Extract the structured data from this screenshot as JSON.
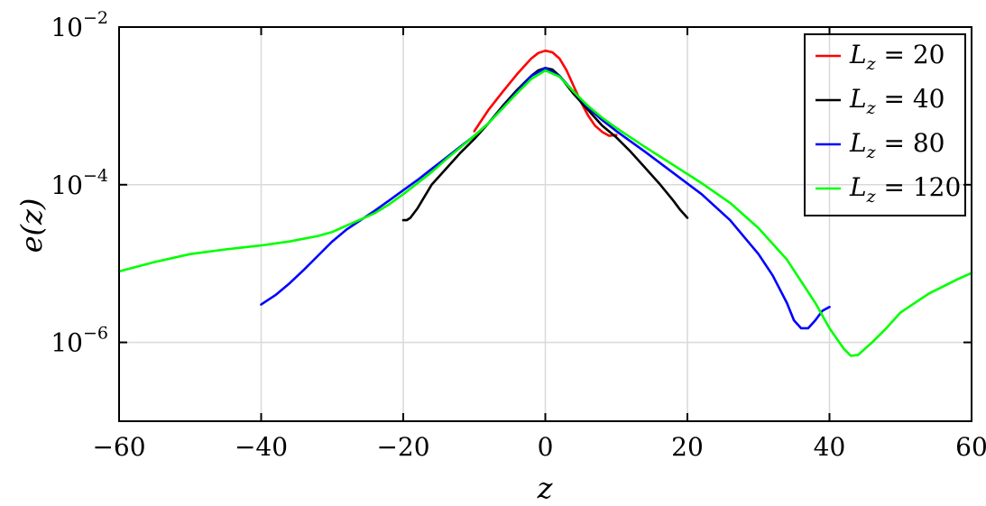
{
  "chart_data": {
    "type": "line",
    "xlabel": "z",
    "ylabel": "e(z)",
    "xlim": [
      -60,
      60
    ],
    "ylim_log10": [
      -7,
      -2
    ],
    "yscale": "log",
    "grid": true,
    "legend_placement": "top-right",
    "x_ticks": [
      {
        "value": -60,
        "label": "−60"
      },
      {
        "value": -40,
        "label": "−40"
      },
      {
        "value": -20,
        "label": "−20"
      },
      {
        "value": 0,
        "label": "0"
      },
      {
        "value": 20,
        "label": "20"
      },
      {
        "value": 40,
        "label": "40"
      },
      {
        "value": 60,
        "label": "60"
      }
    ],
    "y_ticks": [
      {
        "exp": -2,
        "base": "10",
        "sup": "−2"
      },
      {
        "exp": -4,
        "base": "10",
        "sup": "−4"
      },
      {
        "exp": -6,
        "base": "10",
        "sup": "−6"
      }
    ],
    "series": [
      {
        "name": "L_z = 20",
        "legend": {
          "L": "L",
          "sub": "z",
          "rest": " = 20"
        },
        "color": "#ff0000",
        "points": [
          [
            -10,
            -3.32
          ],
          [
            -8,
            -3.05
          ],
          [
            -6,
            -2.82
          ],
          [
            -4,
            -2.6
          ],
          [
            -2,
            -2.4
          ],
          [
            -1,
            -2.33
          ],
          [
            0,
            -2.3
          ],
          [
            1,
            -2.32
          ],
          [
            2,
            -2.4
          ],
          [
            3,
            -2.55
          ],
          [
            4,
            -2.75
          ],
          [
            5,
            -2.95
          ],
          [
            6,
            -3.12
          ],
          [
            7,
            -3.25
          ],
          [
            8,
            -3.33
          ],
          [
            9,
            -3.38
          ],
          [
            10,
            -3.37
          ]
        ]
      },
      {
        "name": "L_z = 40",
        "legend": {
          "L": "L",
          "sub": "z",
          "rest": " = 40"
        },
        "color": "#000000",
        "points": [
          [
            -20,
            -4.45
          ],
          [
            -19.5,
            -4.45
          ],
          [
            -19,
            -4.42
          ],
          [
            -18,
            -4.3
          ],
          [
            -17,
            -4.15
          ],
          [
            -16,
            -4.0
          ],
          [
            -14,
            -3.8
          ],
          [
            -12,
            -3.6
          ],
          [
            -10,
            -3.42
          ],
          [
            -8,
            -3.22
          ],
          [
            -6,
            -3.0
          ],
          [
            -4,
            -2.8
          ],
          [
            -2,
            -2.62
          ],
          [
            -1,
            -2.55
          ],
          [
            0,
            -2.52
          ],
          [
            1,
            -2.54
          ],
          [
            2,
            -2.62
          ],
          [
            4,
            -2.85
          ],
          [
            6,
            -3.05
          ],
          [
            8,
            -3.25
          ],
          [
            10,
            -3.4
          ],
          [
            12,
            -3.58
          ],
          [
            14,
            -3.78
          ],
          [
            16,
            -3.98
          ],
          [
            18,
            -4.2
          ],
          [
            19,
            -4.32
          ],
          [
            20,
            -4.42
          ]
        ]
      },
      {
        "name": "L_z = 80",
        "legend": {
          "L": "L",
          "sub": "z",
          "rest": " = 80"
        },
        "color": "#0000ff",
        "points": [
          [
            -40,
            -5.52
          ],
          [
            -38,
            -5.4
          ],
          [
            -36,
            -5.25
          ],
          [
            -34,
            -5.08
          ],
          [
            -32,
            -4.9
          ],
          [
            -30,
            -4.72
          ],
          [
            -28,
            -4.57
          ],
          [
            -26,
            -4.45
          ],
          [
            -24,
            -4.33
          ],
          [
            -22,
            -4.2
          ],
          [
            -20,
            -4.07
          ],
          [
            -18,
            -3.94
          ],
          [
            -16,
            -3.8
          ],
          [
            -14,
            -3.66
          ],
          [
            -12,
            -3.52
          ],
          [
            -10,
            -3.38
          ],
          [
            -8,
            -3.22
          ],
          [
            -6,
            -3.02
          ],
          [
            -4,
            -2.82
          ],
          [
            -2,
            -2.62
          ],
          [
            0,
            -2.52
          ],
          [
            2,
            -2.62
          ],
          [
            4,
            -2.82
          ],
          [
            6,
            -3.02
          ],
          [
            8,
            -3.18
          ],
          [
            10,
            -3.32
          ],
          [
            14,
            -3.58
          ],
          [
            18,
            -3.85
          ],
          [
            22,
            -4.12
          ],
          [
            26,
            -4.45
          ],
          [
            30,
            -4.88
          ],
          [
            32,
            -5.15
          ],
          [
            34,
            -5.5
          ],
          [
            35,
            -5.72
          ],
          [
            36,
            -5.82
          ],
          [
            37,
            -5.82
          ],
          [
            38,
            -5.72
          ],
          [
            39,
            -5.6
          ],
          [
            40,
            -5.55
          ]
        ]
      },
      {
        "name": "L_z = 120",
        "legend": {
          "L": "L",
          "sub": "z",
          "rest": " = 120"
        },
        "color": "#00ff00",
        "points": [
          [
            -60,
            -5.1
          ],
          [
            -55,
            -4.98
          ],
          [
            -50,
            -4.88
          ],
          [
            -45,
            -4.82
          ],
          [
            -40,
            -4.77
          ],
          [
            -36,
            -4.72
          ],
          [
            -32,
            -4.65
          ],
          [
            -30,
            -4.6
          ],
          [
            -28,
            -4.52
          ],
          [
            -26,
            -4.44
          ],
          [
            -24,
            -4.36
          ],
          [
            -22,
            -4.25
          ],
          [
            -20,
            -4.12
          ],
          [
            -18,
            -3.98
          ],
          [
            -16,
            -3.84
          ],
          [
            -14,
            -3.68
          ],
          [
            -12,
            -3.53
          ],
          [
            -10,
            -3.38
          ],
          [
            -8,
            -3.22
          ],
          [
            -6,
            -3.03
          ],
          [
            -4,
            -2.84
          ],
          [
            -2,
            -2.66
          ],
          [
            0,
            -2.55
          ],
          [
            2,
            -2.63
          ],
          [
            4,
            -2.82
          ],
          [
            6,
            -3.0
          ],
          [
            8,
            -3.15
          ],
          [
            10,
            -3.28
          ],
          [
            14,
            -3.52
          ],
          [
            18,
            -3.75
          ],
          [
            22,
            -3.98
          ],
          [
            26,
            -4.23
          ],
          [
            30,
            -4.55
          ],
          [
            34,
            -4.95
          ],
          [
            38,
            -5.5
          ],
          [
            40,
            -5.82
          ],
          [
            42,
            -6.08
          ],
          [
            43,
            -6.17
          ],
          [
            44,
            -6.16
          ],
          [
            46,
            -6.0
          ],
          [
            48,
            -5.82
          ],
          [
            50,
            -5.62
          ],
          [
            54,
            -5.38
          ],
          [
            58,
            -5.2
          ],
          [
            60,
            -5.12
          ]
        ]
      }
    ]
  }
}
